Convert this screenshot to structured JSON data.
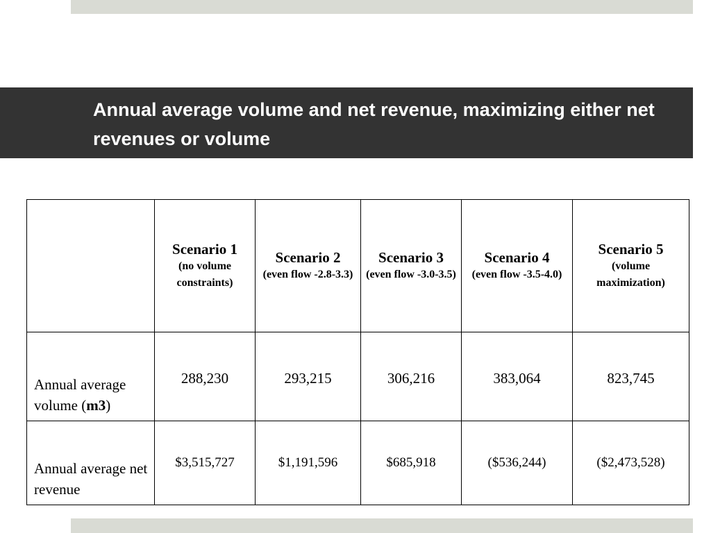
{
  "slide": {
    "title": "Annual average volume and net revenue, maximizing either net revenues or volume"
  },
  "table": {
    "columns": [
      {
        "name": "Scenario 1",
        "note": "(no volume constraints)"
      },
      {
        "name": "Scenario 2",
        "note": "(even flow -2.8-3.3)"
      },
      {
        "name": "Scenario 3",
        "note": "(even flow -3.0-3.5)"
      },
      {
        "name": "Scenario 4",
        "note": "(even flow -3.5-4.0)"
      },
      {
        "name": "Scenario 5",
        "note": "(volume maximization)"
      }
    ],
    "rows": [
      {
        "label": "Annual average volume (",
        "label_unit": "m3",
        "label_end": ")",
        "values": [
          "288,230",
          "293,215",
          "306,216",
          "383,064",
          "823,745"
        ]
      },
      {
        "label": "Annual average net revenue",
        "values": [
          "$3,515,727",
          "$1,191,596",
          "$685,918",
          "($536,244)",
          "($2,473,528)"
        ]
      }
    ]
  },
  "colors": {
    "title_band": "#333333",
    "accent_bar": "#d9dbd4",
    "title_text": "#ffffff"
  }
}
